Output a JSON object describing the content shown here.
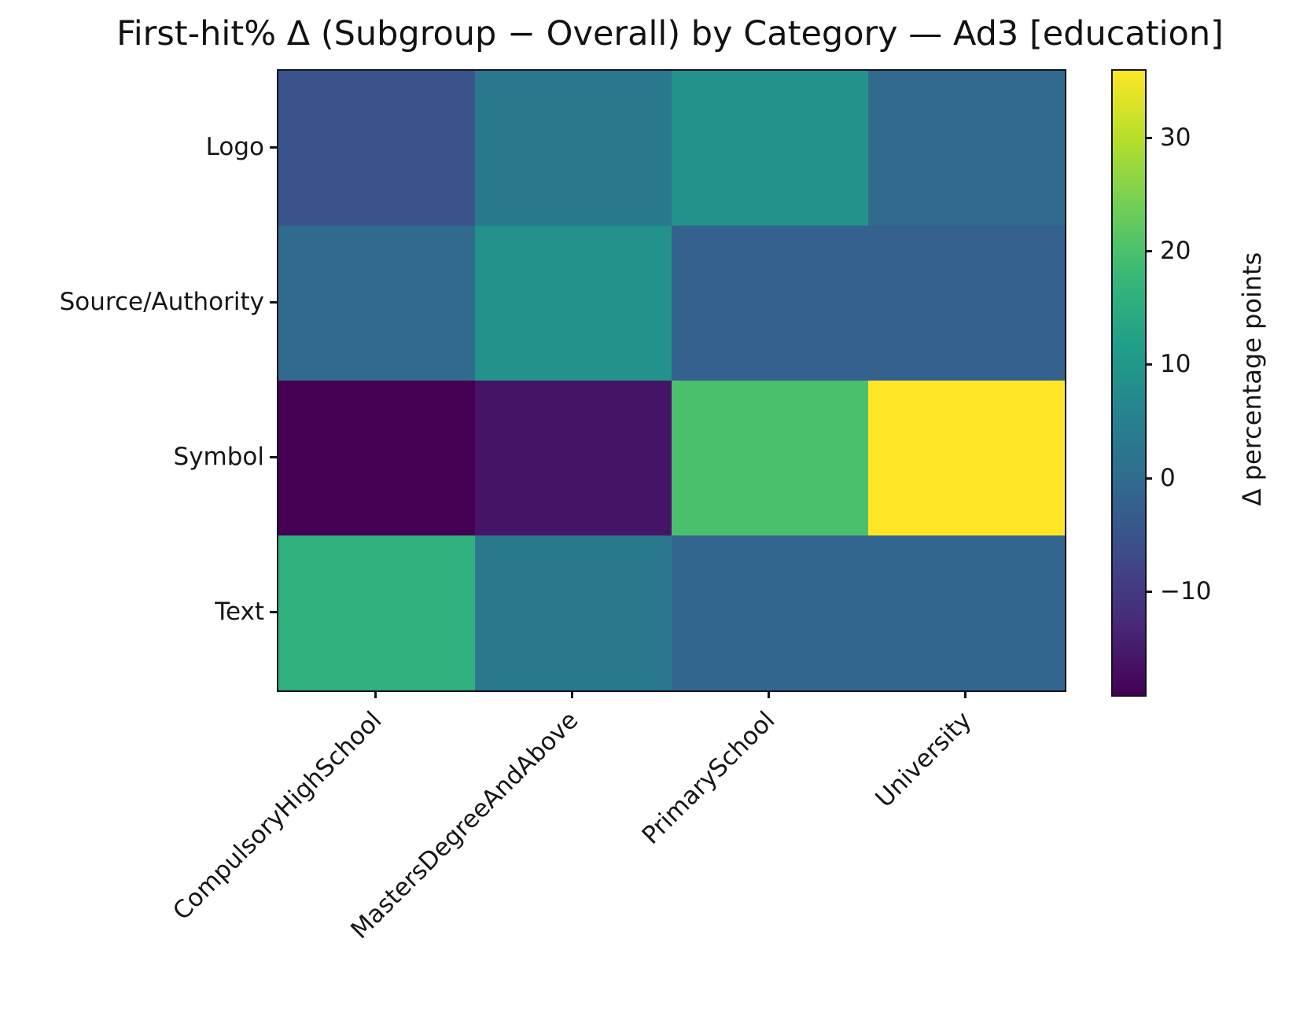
{
  "chart_data": {
    "type": "heatmap",
    "title": "First-hit% Δ (Subgroup − Overall) by Category — Ad3 [education]",
    "rows": [
      "Logo",
      "Source/Authority",
      "Symbol",
      "Text"
    ],
    "columns": [
      "CompulsoryHighSchool",
      "MastersDegreeAndAbove",
      "PrimarySchool",
      "University"
    ],
    "values": [
      [
        -5,
        3,
        9,
        0
      ],
      [
        0,
        9,
        -2,
        -2
      ],
      [
        -19,
        -16,
        20,
        36
      ],
      [
        16,
        3,
        -1,
        -1
      ]
    ],
    "value_unit": "percentage points",
    "colormap": "viridis",
    "vmin": -19,
    "vmax": 36,
    "colorbar_label": "Δ percentage points",
    "colorbar_ticks": [
      30,
      20,
      10,
      0,
      -10
    ],
    "legend_position": "right",
    "grid": false
  }
}
